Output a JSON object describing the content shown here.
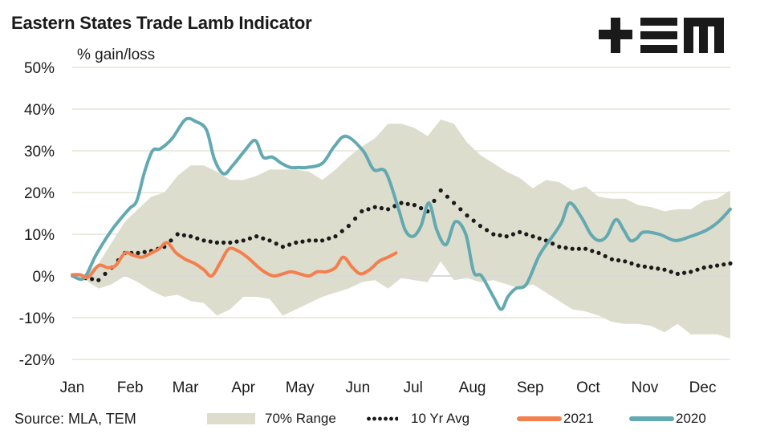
{
  "header": {
    "title": "Eastern States Trade Lamb Indicator",
    "logo_text": "+EM",
    "logo_icon": "tem-logo"
  },
  "footer": {
    "source": "Source: MLA, TEM"
  },
  "colors": {
    "range_fill": "#dcddcd",
    "avg_dots": "#1a1a1a",
    "series_2021": "#f47f4e",
    "series_2020": "#63a9b1",
    "gridline": "#ecebdf",
    "zero_line": "#d9d9d9"
  },
  "chart_data": {
    "type": "line",
    "title": "Eastern States Trade Lamb Indicator",
    "ylabel": "% gain/loss",
    "xlabel": "",
    "ylim": [
      -20,
      50
    ],
    "yticks": [
      50,
      40,
      30,
      20,
      10,
      0,
      -10,
      -20
    ],
    "ytick_labels": [
      "50%",
      "40%",
      "30%",
      "20%",
      "10%",
      "0%",
      "-10%",
      "-20%"
    ],
    "x_unit": "week of year",
    "xlim": [
      0,
      50
    ],
    "month_ticks": [
      {
        "label": "Jan",
        "week": 0
      },
      {
        "label": "Feb",
        "week": 4.4
      },
      {
        "label": "Mar",
        "week": 8.6
      },
      {
        "label": "Apr",
        "week": 13
      },
      {
        "label": "May",
        "week": 17.3
      },
      {
        "label": "Jun",
        "week": 21.7
      },
      {
        "label": "Jul",
        "week": 25.9
      },
      {
        "label": "Aug",
        "week": 30.4
      },
      {
        "label": "Sep",
        "week": 34.8
      },
      {
        "label": "Oct",
        "week": 39.2
      },
      {
        "label": "Nov",
        "week": 43.5
      },
      {
        "label": "Dec",
        "week": 47.9
      }
    ],
    "grid": true,
    "legend_position": "bottom",
    "range_70pct": {
      "name": "70% Range",
      "weeks": [
        0,
        1,
        2,
        3,
        4,
        5,
        6,
        7,
        8,
        9,
        10,
        11,
        12,
        13,
        14,
        15,
        16,
        17,
        18,
        19,
        20,
        21,
        22,
        23,
        24,
        25,
        26,
        27,
        28,
        29,
        30,
        31,
        32,
        33,
        34,
        35,
        36,
        37,
        38,
        39,
        40,
        41,
        42,
        43,
        44,
        45,
        46,
        47,
        48,
        49,
        50
      ],
      "upper": [
        0,
        0.5,
        3,
        8,
        13,
        16,
        19,
        20,
        24,
        26.5,
        26.5,
        25,
        23,
        23,
        24,
        25.5,
        25.5,
        25.5,
        25,
        23,
        25.5,
        28.5,
        31,
        33,
        36.5,
        36.5,
        35.5,
        33.5,
        37.5,
        36.5,
        32,
        29,
        27,
        25,
        23.5,
        21,
        23,
        22.5,
        20.5,
        21.5,
        19,
        18.5,
        18.5,
        17,
        16.5,
        15.5,
        16,
        16,
        18,
        18.5,
        20.5
      ],
      "lower": [
        0,
        -1,
        -3,
        -2,
        0,
        -1.5,
        -3.5,
        -5,
        -4.5,
        -6,
        -6.5,
        -9.5,
        -8,
        -5,
        -5,
        -5.5,
        -9.5,
        -8,
        -6.5,
        -5,
        -4,
        -3,
        -1.5,
        -1,
        -3,
        -0.5,
        -1,
        -1.5,
        3.5,
        -1,
        -0.5,
        -1.5,
        -1,
        -2,
        -3,
        -2,
        -4,
        -6,
        -8,
        -8.5,
        -9.5,
        -11,
        -11.5,
        -11.5,
        -12,
        -13.5,
        -11.5,
        -14,
        -14,
        -14,
        -15
      ]
    },
    "series": [
      {
        "name": "10 Yr Avg",
        "style": "dotted",
        "weeks": [
          1,
          2,
          3,
          4,
          5,
          6,
          7,
          8,
          9,
          10,
          11,
          12,
          13,
          14,
          15,
          16,
          17,
          18,
          19,
          20,
          21,
          22,
          23,
          24,
          25,
          26,
          27,
          28,
          29,
          30,
          31,
          32,
          33,
          34,
          35,
          36,
          37,
          38,
          39,
          40,
          41,
          42,
          43,
          44,
          45,
          46,
          47,
          48,
          49,
          50
        ],
        "values": [
          -0.5,
          -1,
          2,
          5.5,
          5.5,
          6,
          7,
          10,
          9.5,
          8.5,
          8,
          8,
          8.5,
          9.5,
          8.5,
          7,
          8,
          8.5,
          8.5,
          9.5,
          12,
          15.5,
          16.5,
          16,
          17.5,
          17,
          15.5,
          20.5,
          17.5,
          14.5,
          12,
          10,
          9.5,
          10.5,
          9.5,
          8.5,
          7,
          6.5,
          6.5,
          5.5,
          4,
          3.5,
          2.5,
          2,
          1.5,
          0.5,
          1,
          2,
          2.5,
          3
        ]
      },
      {
        "name": "2021",
        "style": "solid",
        "weeks": [
          0,
          0.6,
          1.2,
          2,
          2.7,
          3.3,
          4,
          4.6,
          5.3,
          6,
          6.6,
          7.2,
          7.9,
          8.6,
          9.3,
          10,
          10.6,
          11.3,
          11.9,
          12.6,
          13.3,
          14,
          14.6,
          15.3,
          16,
          16.6,
          17.3,
          18,
          18.6,
          19.3,
          20,
          20.6,
          21.3,
          21.9,
          22.6,
          23.3,
          24,
          24.6
        ],
        "values": [
          0.3,
          0.3,
          -0.3,
          2.5,
          2,
          2.5,
          5.5,
          5,
          4.5,
          5.5,
          6.5,
          8,
          5.5,
          4,
          3,
          1.5,
          0,
          3.5,
          6.5,
          6,
          4.5,
          2.5,
          1,
          0,
          0.5,
          1,
          0.5,
          0,
          1,
          1,
          2,
          4.5,
          2,
          0.5,
          1.5,
          3.5,
          4.5,
          5.5
        ]
      },
      {
        "name": "2020",
        "style": "solid",
        "weeks": [
          0,
          0.9,
          1.8,
          3,
          4.3,
          4.9,
          5.5,
          6.1,
          6.7,
          7.6,
          8.6,
          9.4,
          10.2,
          10.8,
          11.5,
          12.2,
          13.1,
          13.9,
          14.5,
          15.2,
          15.9,
          16.6,
          17.2,
          17.8,
          19,
          19.9,
          20.8,
          22.1,
          22.9,
          23.8,
          24.7,
          25.3,
          25.9,
          26.5,
          27.1,
          27.7,
          28.4,
          29.1,
          29.9,
          30.5,
          31.1,
          32,
          32.6,
          33.1,
          33.7,
          34.5,
          35.5,
          36.6,
          37.2,
          37.8,
          38.7,
          39.4,
          40,
          40.6,
          41.3,
          41.9,
          42.4,
          42.9,
          43.4,
          44.6,
          45.8,
          47,
          48.2,
          49.1,
          50
        ],
        "values": [
          0,
          -0.5,
          5,
          11,
          16,
          18,
          25,
          30,
          30.5,
          33,
          37.5,
          37,
          35,
          28,
          24.5,
          26.5,
          30,
          32.5,
          28.5,
          28.5,
          27,
          26,
          26,
          26,
          27,
          31,
          33.5,
          30,
          25.5,
          25,
          17,
          11,
          9.5,
          12,
          17.5,
          11,
          7.5,
          13,
          10,
          1,
          0,
          -5,
          -8,
          -5,
          -3,
          -2,
          5,
          10,
          13,
          17.5,
          14,
          10,
          8.5,
          9.5,
          13.5,
          11,
          8.5,
          9,
          10.5,
          10,
          8.5,
          9.5,
          11,
          13,
          16
        ]
      }
    ],
    "legend": [
      "70% Range",
      "10 Yr Avg",
      "2021",
      "2020"
    ]
  }
}
